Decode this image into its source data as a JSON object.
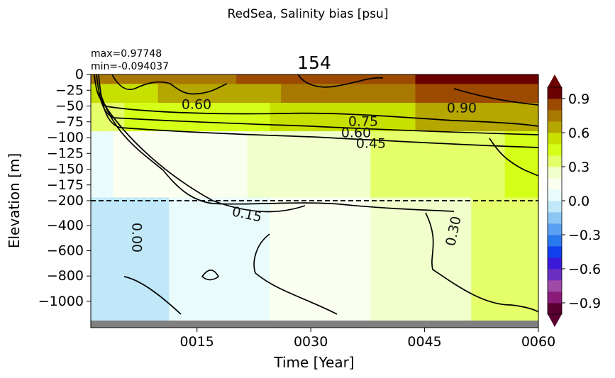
{
  "chart_data": {
    "type": "heatmap",
    "suptitle": "RedSea, Salinity bias [psu]",
    "title": "154",
    "stats": {
      "max": "max=0.97748",
      "min": "min=-0.094037"
    },
    "xlabel": "Time [Year]",
    "ylabel": "Elevation [m]",
    "x_ticks": [
      "0015",
      "0030",
      "0045",
      "0060"
    ],
    "x_range": [
      1,
      60
    ],
    "y_ticks_upper": [
      "0",
      "−25",
      "−50",
      "−75",
      "−100",
      "−125",
      "−150",
      "−175",
      "−200"
    ],
    "y_ticks_lower": [
      "−400",
      "−600",
      "−800",
      "−1000"
    ],
    "y_break_depth": -200,
    "colorbar": {
      "range": [
        -1.0,
        1.0
      ],
      "ticks": [
        "0.9",
        "0.6",
        "0.3",
        "0.0",
        "−0.3",
        "−0.6",
        "−0.9"
      ],
      "levels": 20,
      "colors": [
        "#5a0030",
        "#8b1a7a",
        "#a04aa8",
        "#6a2fc0",
        "#3a1ad8",
        "#1040ee",
        "#2a78f0",
        "#5aa0f2",
        "#8cc6f4",
        "#c0e8f8",
        "#eafbfb",
        "#fbfff0",
        "#f0ffcc",
        "#e4ff6a",
        "#d6ff18",
        "#c8e000",
        "#b5a600",
        "#a87800",
        "#9c4a00",
        "#6a0000"
      ]
    },
    "contour_labels": [
      "0.60",
      "0.90",
      "0.75",
      "0.60",
      "0.45",
      "0.15",
      "0.00",
      "0.30"
    ]
  }
}
